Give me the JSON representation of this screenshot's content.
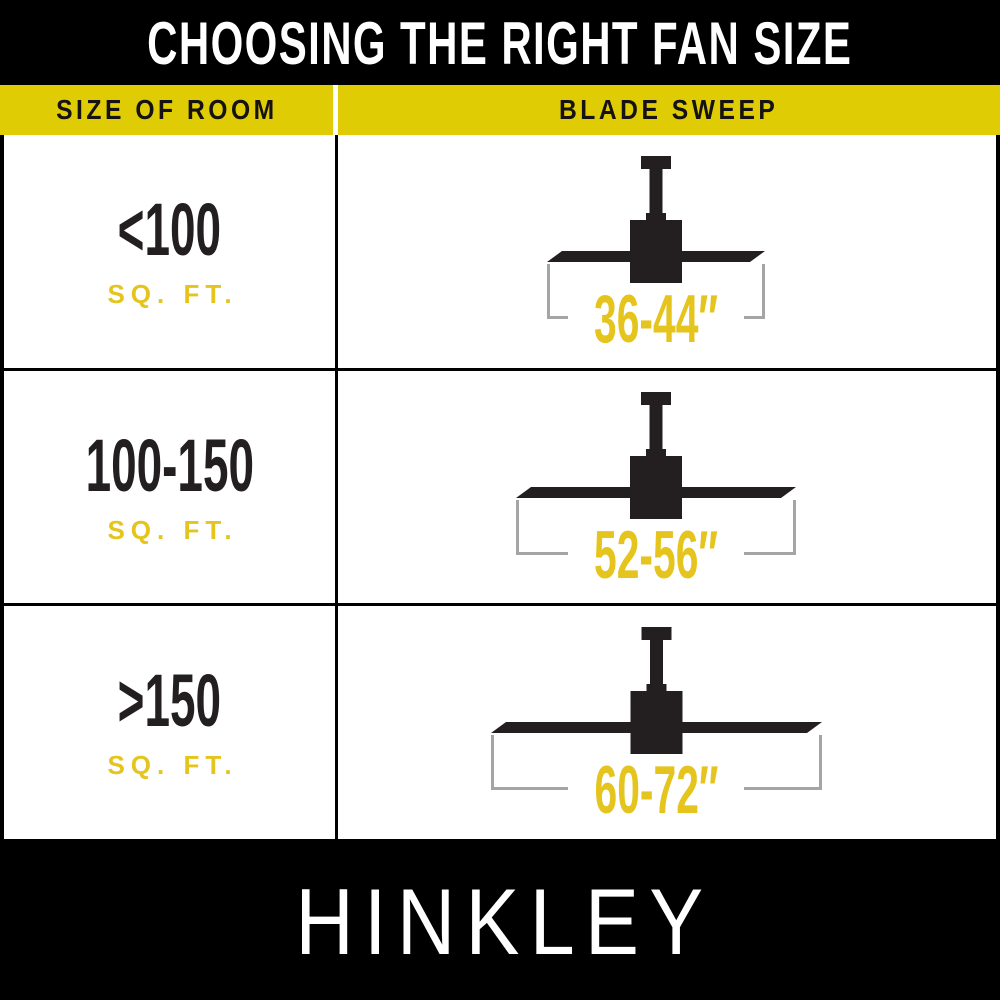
{
  "title": "CHOOSING THE RIGHT FAN SIZE",
  "columns": {
    "room": "SIZE OF ROOM",
    "sweep": "BLADE SWEEP"
  },
  "rows": [
    {
      "room_size": "<100",
      "room_unit": "SQ. FT.",
      "blade_sweep": "36-44″"
    },
    {
      "room_size": "100-150",
      "room_unit": "SQ. FT.",
      "blade_sweep": "52-56″"
    },
    {
      "room_size": ">150",
      "room_unit": "SQ. FT.",
      "blade_sweep": "60-72″"
    }
  ],
  "brand": "HINKLEY",
  "icons": [
    {
      "name": "ceiling-fan-icon",
      "meaning": "side view of a ceiling fan with downrod, motor housing and blade"
    }
  ],
  "colors": {
    "black": "#000000",
    "white": "#FFFFFF",
    "band_yellow": "#DFCC04",
    "accent_yellow_text": "#E5C51D",
    "ink": "#231F20",
    "bracket_gray": "#A5A5A5"
  }
}
